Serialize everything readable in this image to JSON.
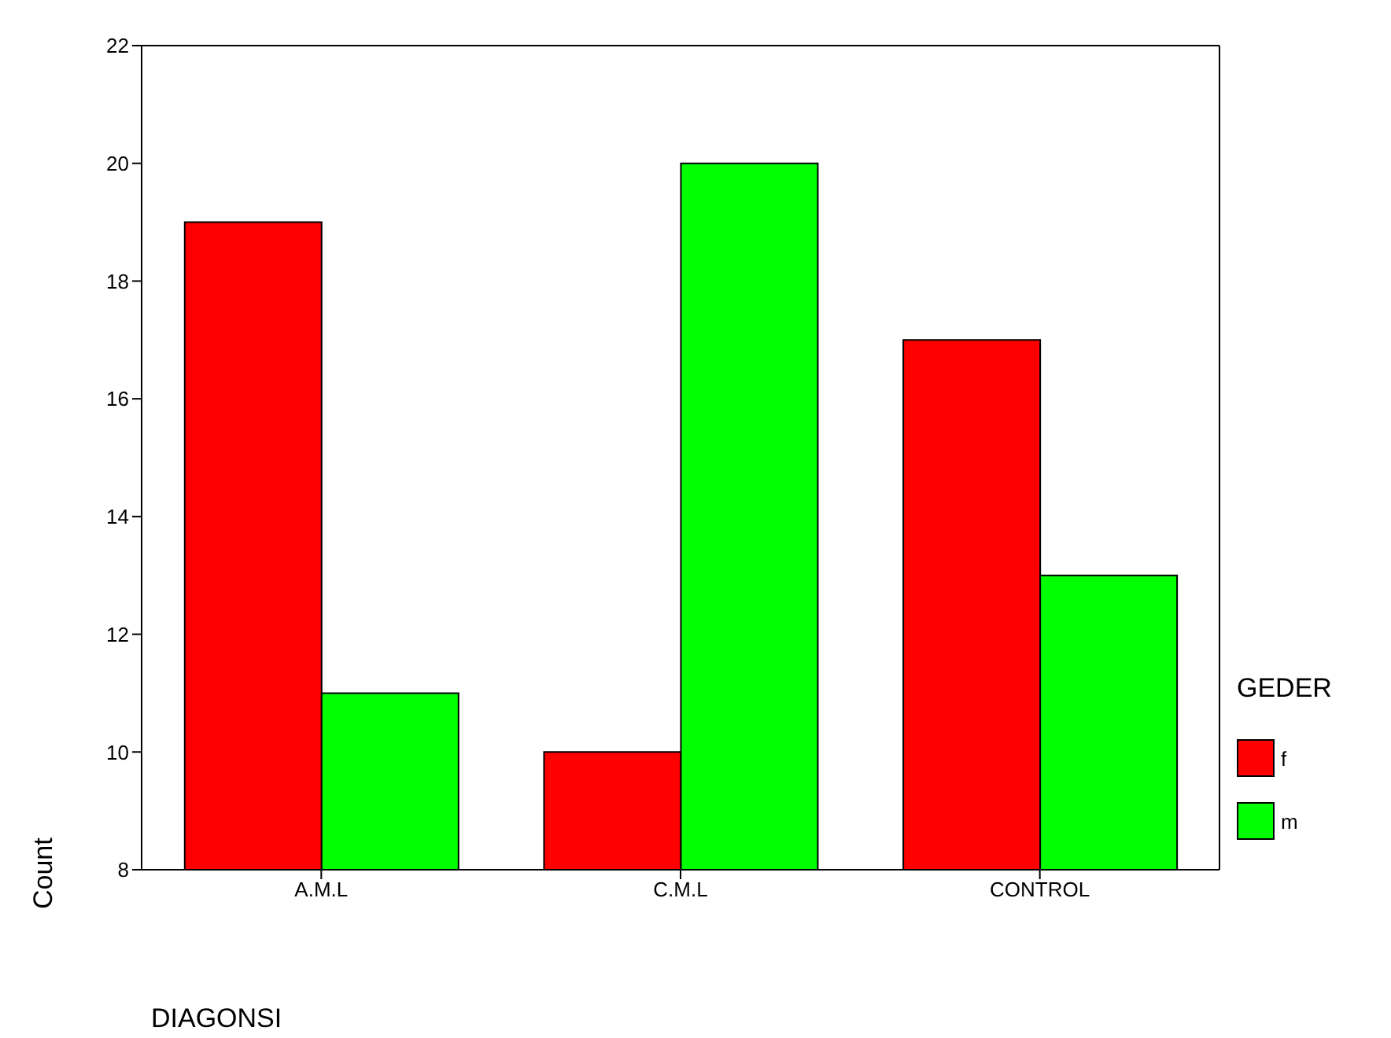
{
  "chart_data": {
    "type": "bar",
    "xlabel": "DIAGONSI",
    "ylabel": "Count",
    "legend_title": "GEDER",
    "categories": [
      "A.M.L",
      "C.M.L",
      "CONTROL"
    ],
    "series": [
      {
        "name": "f",
        "color": "#ff0000",
        "values": [
          19,
          10,
          17
        ]
      },
      {
        "name": "m",
        "color": "#00ff00",
        "values": [
          11,
          20,
          13
        ]
      }
    ],
    "ylim": [
      8,
      22
    ],
    "yticks": [
      8,
      10,
      12,
      14,
      16,
      18,
      20,
      22
    ],
    "grid": false,
    "legend": "right"
  }
}
